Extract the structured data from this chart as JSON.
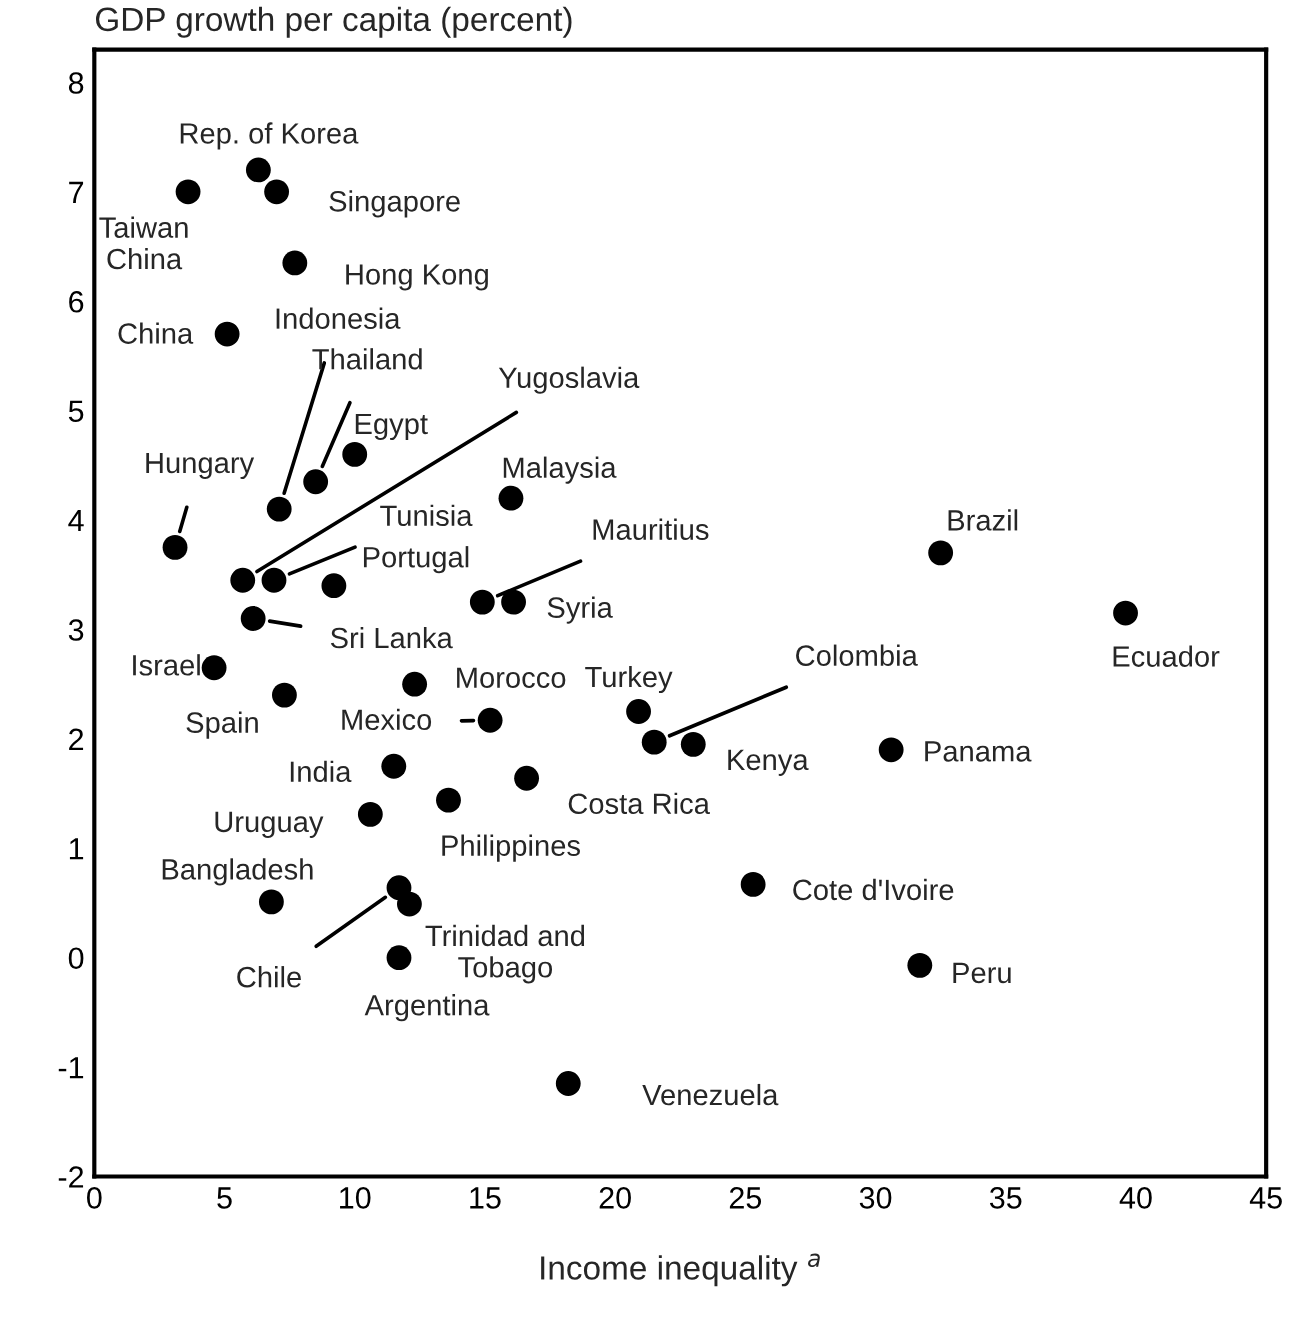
{
  "chart_data": {
    "type": "scatter",
    "ylabel": "GDP growth per capita (percent)",
    "xlabel": "Income inequality $^{a}$",
    "xlim": [
      0,
      45
    ],
    "xticks": [
      0,
      5,
      10,
      15,
      20,
      25,
      30,
      35,
      40,
      45
    ],
    "ylim": [
      -2,
      8.3
    ],
    "yticks": [
      -2,
      -1,
      0,
      1,
      2,
      3,
      4,
      5,
      6,
      7,
      8
    ],
    "grid": false,
    "marker": "circle",
    "series": [
      {
        "color": "#000000",
        "x": [
          6.3,
          3.6,
          7.0,
          7.7,
          5.1,
          7.1,
          8.5,
          10.0,
          5.7,
          3.1,
          6.9,
          9.2,
          16.0,
          14.9,
          16.1,
          6.1,
          4.6,
          12.3,
          20.9,
          7.3,
          15.2,
          21.5,
          23.0,
          30.6,
          32.5,
          39.6,
          25.3,
          31.7,
          18.2,
          11.5,
          16.6,
          10.6,
          13.6,
          6.8,
          11.7,
          12.1,
          11.7
        ],
        "values": [
          7.2,
          7.0,
          7.0,
          6.35,
          5.7,
          4.1,
          4.35,
          4.6,
          3.45,
          3.75,
          3.45,
          3.4,
          4.2,
          3.25,
          3.25,
          3.1,
          2.65,
          2.5,
          2.25,
          2.4,
          2.17,
          1.97,
          1.95,
          1.9,
          3.7,
          3.15,
          0.67,
          -0.07,
          -1.15,
          1.75,
          1.64,
          1.31,
          1.44,
          0.51,
          0.64,
          0.49,
          0.0
        ]
      }
    ],
    "annotations": [
      {
        "text": "Rep. of Korea",
        "x": 6.3,
        "y": 7.2
      },
      {
        "text": "Taiwan\nChina",
        "x": 3.6,
        "y": 7.0
      },
      {
        "text": "Singapore",
        "x": 7.0,
        "y": 7.0
      },
      {
        "text": "Hong Kong",
        "x": 7.7,
        "y": 6.35
      },
      {
        "text": "China",
        "x": 5.1,
        "y": 5.7
      },
      {
        "text": "Indonesia",
        "x": 7.1,
        "y": 4.1
      },
      {
        "text": "Thailand",
        "x": 8.5,
        "y": 4.35
      },
      {
        "text": "Egypt",
        "x": 10.0,
        "y": 4.6
      },
      {
        "text": "Yugoslavia",
        "x": 5.7,
        "y": 3.45
      },
      {
        "text": "Hungary",
        "x": 3.1,
        "y": 3.75
      },
      {
        "text": "Tunisia",
        "x": 6.9,
        "y": 3.45
      },
      {
        "text": "Portugal",
        "x": 9.2,
        "y": 3.4
      },
      {
        "text": "Malaysia",
        "x": 16.0,
        "y": 4.2
      },
      {
        "text": "Mauritius",
        "x": 14.9,
        "y": 3.25
      },
      {
        "text": "Syria",
        "x": 16.1,
        "y": 3.25
      },
      {
        "text": "Sri Lanka",
        "x": 6.1,
        "y": 3.1
      },
      {
        "text": "Israel",
        "x": 4.6,
        "y": 2.65
      },
      {
        "text": "Morocco",
        "x": 12.3,
        "y": 2.5
      },
      {
        "text": "Turkey",
        "x": 20.9,
        "y": 2.25
      },
      {
        "text": "Spain",
        "x": 7.3,
        "y": 2.4
      },
      {
        "text": "Mexico",
        "x": 15.2,
        "y": 2.17
      },
      {
        "text": "Colombia",
        "x": 21.5,
        "y": 1.97
      },
      {
        "text": "Kenya",
        "x": 23.0,
        "y": 1.95
      },
      {
        "text": "Panama",
        "x": 30.6,
        "y": 1.9
      },
      {
        "text": "Brazil",
        "x": 32.5,
        "y": 3.7
      },
      {
        "text": "Ecuador",
        "x": 39.6,
        "y": 3.15
      },
      {
        "text": "Cote d'Ivoire",
        "x": 25.3,
        "y": 0.67
      },
      {
        "text": "Peru",
        "x": 31.7,
        "y": -0.07
      },
      {
        "text": "Venezuela",
        "x": 18.2,
        "y": -1.15
      },
      {
        "text": "India",
        "x": 11.5,
        "y": 1.75
      },
      {
        "text": "Costa Rica",
        "x": 16.6,
        "y": 1.64
      },
      {
        "text": "Uruguay",
        "x": 10.6,
        "y": 1.31
      },
      {
        "text": "Philippines",
        "x": 13.6,
        "y": 1.44
      },
      {
        "text": "Bangladesh",
        "x": 6.8,
        "y": 0.51
      },
      {
        "text": "Chile",
        "x": 11.7,
        "y": 0.64
      },
      {
        "text": "Trinidad and\nTobago",
        "x": 12.1,
        "y": 0.49
      },
      {
        "text": "Argentina",
        "x": 11.7,
        "y": 0.0
      }
    ]
  }
}
